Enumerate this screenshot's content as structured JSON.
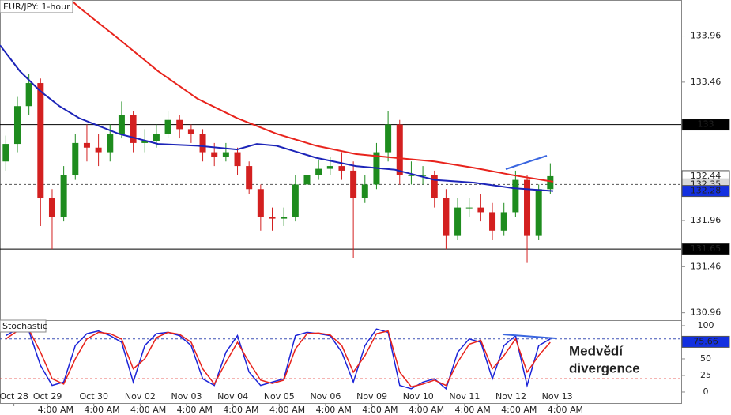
{
  "chart_data": [
    {
      "type": "candlestick",
      "title": "EUR/JPY: 1-hour",
      "x": [
        0.5,
        1.5,
        2.5,
        3.5,
        4.5,
        5.5,
        6.5,
        7.5,
        8.5,
        9.5,
        10.5,
        11.5,
        12.5,
        13.5,
        14.5,
        15.5,
        16.5,
        17.5,
        18.5,
        19.5,
        20.5,
        21.5,
        22.5,
        23.5,
        24.5,
        25.5,
        26.5,
        27.5,
        28.5,
        29.5,
        30.5,
        31.5,
        32.5,
        33.5,
        34.5,
        35.5,
        36.5,
        37.5,
        38.5,
        39.5,
        40.5,
        41.5,
        42.5,
        43.5,
        44.5,
        45.5,
        46.5,
        47.5
      ],
      "open": [
        132.6,
        132.79,
        133.2,
        133.45,
        132.2,
        132.0,
        132.45,
        132.8,
        132.75,
        132.7,
        132.9,
        133.1,
        132.8,
        132.82,
        132.9,
        133.05,
        132.95,
        132.9,
        132.7,
        132.65,
        132.7,
        132.55,
        132.3,
        132.0,
        131.98,
        132.0,
        132.35,
        132.45,
        132.52,
        132.55,
        132.5,
        132.2,
        132.35,
        132.7,
        133.0,
        132.45,
        132.45,
        132.45,
        132.2,
        131.8,
        132.1,
        132.1,
        132.05,
        131.85,
        132.05,
        132.4,
        131.8,
        132.3
      ],
      "high": [
        132.88,
        133.3,
        133.55,
        133.5,
        132.3,
        132.55,
        132.9,
        133.0,
        132.9,
        133.0,
        133.25,
        133.15,
        132.95,
        133.0,
        133.15,
        133.1,
        133.0,
        132.95,
        132.8,
        132.8,
        132.75,
        132.6,
        132.35,
        132.1,
        132.1,
        132.45,
        132.55,
        132.62,
        132.65,
        132.7,
        132.6,
        132.45,
        132.8,
        133.15,
        133.05,
        132.6,
        132.55,
        132.5,
        132.3,
        132.2,
        132.2,
        132.25,
        132.15,
        132.15,
        132.5,
        132.45,
        132.35,
        132.58
      ],
      "low": [
        132.5,
        132.7,
        133.1,
        131.9,
        131.65,
        131.95,
        132.4,
        132.6,
        132.55,
        132.6,
        132.85,
        132.7,
        132.7,
        132.75,
        132.85,
        132.85,
        132.8,
        132.6,
        132.55,
        132.6,
        132.45,
        132.25,
        131.85,
        131.85,
        131.9,
        131.95,
        132.3,
        132.4,
        132.45,
        132.4,
        131.55,
        132.15,
        132.3,
        132.6,
        132.35,
        132.35,
        132.35,
        132.1,
        131.65,
        131.75,
        132.0,
        131.95,
        131.75,
        131.8,
        132.0,
        131.5,
        131.75,
        132.25
      ],
      "close": [
        132.79,
        133.2,
        133.45,
        132.2,
        132.0,
        132.45,
        132.8,
        132.75,
        132.7,
        132.9,
        133.1,
        132.8,
        132.82,
        132.9,
        133.05,
        132.95,
        132.9,
        132.7,
        132.65,
        132.7,
        132.55,
        132.3,
        132.0,
        131.98,
        132.0,
        132.35,
        132.45,
        132.52,
        132.55,
        132.5,
        132.2,
        132.35,
        132.7,
        133.0,
        132.45,
        132.45,
        132.45,
        132.2,
        131.8,
        132.1,
        132.1,
        132.05,
        131.85,
        132.05,
        132.4,
        131.8,
        132.3,
        132.44
      ],
      "up_color": "#1e8c1e",
      "down_color": "#d32020",
      "overlays": [
        {
          "color": "#e8231c",
          "x": [
            6.13,
            6.82,
            10.23,
            13.64,
            17.05,
            20.46,
            23.87,
            27.29,
            30.7,
            34.11,
            37.52,
            40.93,
            44.34,
            47.75
          ],
          "values": [
            134.35,
            134.27,
            133.93,
            133.58,
            133.28,
            133.07,
            132.9,
            132.77,
            132.68,
            132.64,
            132.6,
            132.53,
            132.45,
            132.38
          ]
        },
        {
          "color": "#1c24b8",
          "x": [
            0,
            1.71,
            3.41,
            5.12,
            6.82,
            10.23,
            13.64,
            17.05,
            20.46,
            22.17,
            23.87,
            27.29,
            30.7,
            34.11,
            37.52,
            40.93,
            44.34,
            47.75
          ],
          "values": [
            133.86,
            133.58,
            133.37,
            133.2,
            133.07,
            132.9,
            132.79,
            132.77,
            132.73,
            132.79,
            132.77,
            132.64,
            132.55,
            132.51,
            132.4,
            132.37,
            132.31,
            132.28
          ]
        }
      ],
      "levels": [
        {
          "value": 133.0,
          "dash": false,
          "color": "#000000"
        },
        {
          "value": 132.35,
          "dash": true,
          "color": "#555555"
        },
        {
          "value": 131.65,
          "dash": false,
          "color": "#000000"
        }
      ],
      "price_labels": [
        {
          "value": 133.0,
          "color": "#000000",
          "text_color": "#ffffff"
        },
        {
          "value": 132.44,
          "color": "#ffffff",
          "text_color": "#000000"
        },
        {
          "value": 132.35,
          "color": "#d8d8d8",
          "text_color": "#000000"
        },
        {
          "value": 132.28,
          "color": "#1330e0",
          "text_color": "#ffffff"
        },
        {
          "value": 131.65,
          "color": "#000000",
          "text_color": "#ffffff"
        }
      ],
      "xlim": [
        0,
        58.8
      ],
      "ylim": [
        130.88,
        134.35
      ],
      "yticks": [
        130.96,
        131.46,
        131.96,
        132.96,
        133.46,
        133.96
      ],
      "xticks": [
        {
          "value": 1.2,
          "label": "Oct 28"
        },
        {
          "value": 4.1,
          "label": "Oct 29"
        },
        {
          "value": 8.1,
          "label": "Oct 30"
        },
        {
          "value": 12.1,
          "label": "Nov 02"
        },
        {
          "value": 16.1,
          "label": "Nov 03"
        },
        {
          "value": 20.1,
          "label": "Nov 04"
        },
        {
          "value": 24.1,
          "label": "Nov 05"
        },
        {
          "value": 28.1,
          "label": "Nov 06"
        },
        {
          "value": 32.1,
          "label": "Nov 09"
        },
        {
          "value": 36.1,
          "label": "Nov 10"
        },
        {
          "value": 40.1,
          "label": "Nov 11"
        },
        {
          "value": 44.1,
          "label": "Nov 12"
        },
        {
          "value": 48.1,
          "label": "Nov 13"
        }
      ],
      "xticks_time": [
        {
          "value": 4.8,
          "label": "4:00 AM"
        },
        {
          "value": 8.8,
          "label": "4:00 AM"
        },
        {
          "value": 12.8,
          "label": "4:00 AM"
        },
        {
          "value": 16.8,
          "label": "4:00 AM"
        },
        {
          "value": 20.8,
          "label": "4:00 AM"
        },
        {
          "value": 24.8,
          "label": "4:00 AM"
        },
        {
          "value": 28.8,
          "label": "4:00 AM"
        },
        {
          "value": 32.8,
          "label": "4:00 AM"
        },
        {
          "value": 36.8,
          "label": "4:00 AM"
        },
        {
          "value": 40.8,
          "label": "4:00 AM"
        },
        {
          "value": 44.8,
          "label": "4:00 AM"
        },
        {
          "value": 48.8,
          "label": "4:00 AM"
        }
      ],
      "annotation": [
        "Medvědí",
        "divergence"
      ]
    },
    {
      "type": "line",
      "title": "Stochastic",
      "ylim": [
        -16.7,
        108.3
      ],
      "yticks": [
        0,
        25,
        50,
        100
      ],
      "levels": [
        {
          "value": 80,
          "color": "#3f51b5"
        },
        {
          "value": 20,
          "color": "#e53935"
        }
      ],
      "series": [
        {
          "color": "#1c24d8",
          "values": [
            85,
            95,
            92,
            40,
            10,
            15,
            70,
            88,
            92,
            85,
            75,
            15,
            70,
            88,
            90,
            85,
            70,
            20,
            10,
            60,
            85,
            30,
            10,
            15,
            20,
            85,
            90,
            88,
            85,
            60,
            15,
            70,
            95,
            90,
            10,
            5,
            15,
            20,
            5,
            60,
            80,
            75,
            20,
            70,
            85,
            10,
            70,
            80
          ]
        },
        {
          "color": "#e8231c",
          "values": [
            80,
            92,
            94,
            60,
            20,
            12,
            50,
            80,
            90,
            88,
            80,
            35,
            50,
            82,
            90,
            87,
            75,
            35,
            12,
            45,
            75,
            45,
            18,
            13,
            18,
            65,
            88,
            89,
            86,
            70,
            30,
            55,
            88,
            92,
            30,
            8,
            12,
            18,
            10,
            45,
            72,
            78,
            35,
            55,
            80,
            30,
            55,
            75
          ]
        }
      ],
      "price_labels": [
        {
          "value": 75.66,
          "color": "#1330e0",
          "text_color": "#ffffff"
        }
      ]
    }
  ]
}
